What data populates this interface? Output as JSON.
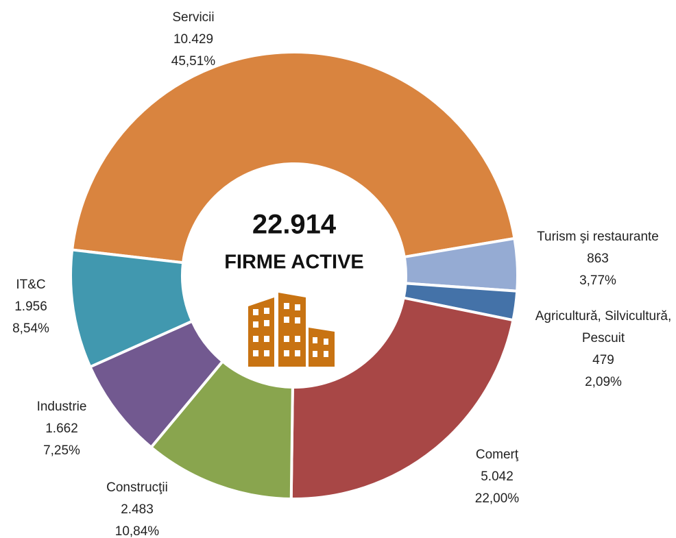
{
  "chart_data": {
    "type": "pie",
    "total": 22914,
    "total_label": "22.914",
    "center_text": "FIRME ACTIVE",
    "categories": [
      "Servicii",
      "Turism şi restaurante",
      "Agricultură, Silvicultură, Pescuit",
      "Comerţ",
      "Construcţii",
      "Industrie",
      "IT&C"
    ],
    "values": [
      10429,
      863,
      479,
      5042,
      2483,
      1662,
      1956
    ],
    "value_labels": [
      "10.429",
      "863",
      "479",
      "5.042",
      "2.483",
      "1.662",
      "1.956"
    ],
    "percents": [
      45.51,
      3.77,
      2.09,
      22.0,
      10.84,
      7.25,
      8.54
    ],
    "percent_labels": [
      "45,51%",
      "3,77%",
      "2,09%",
      "22,00%",
      "10,84%",
      "7,25%",
      "8,54%"
    ],
    "colors": [
      "#d9843f",
      "#95abd3",
      "#4472a8",
      "#a84746",
      "#89a54e",
      "#725990",
      "#4198af"
    ]
  }
}
